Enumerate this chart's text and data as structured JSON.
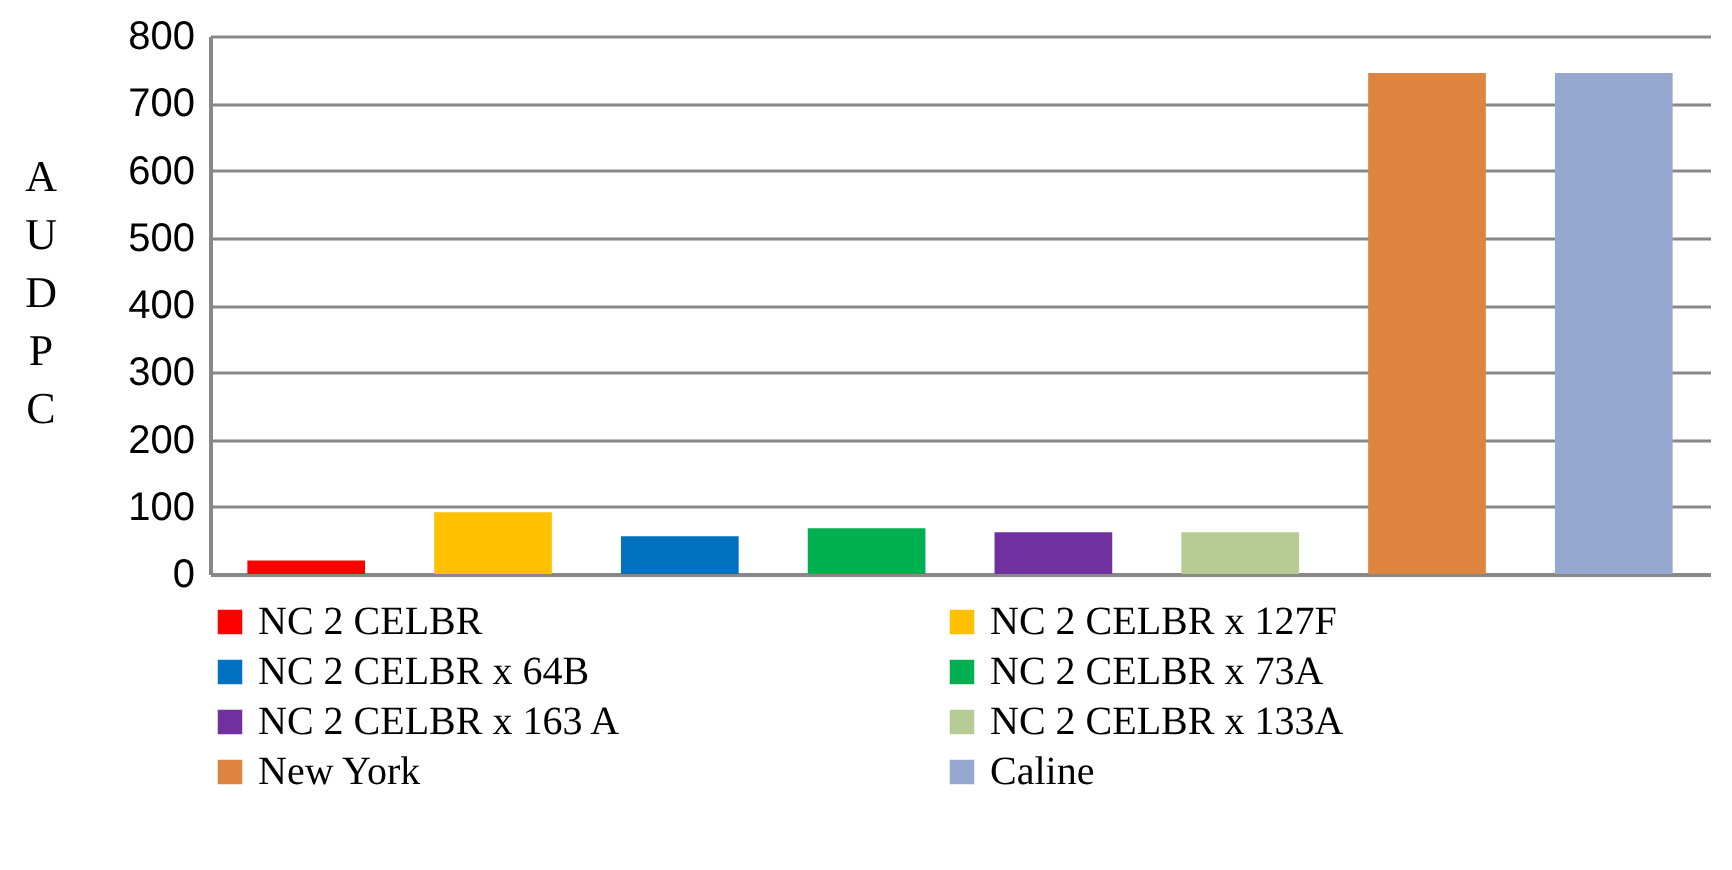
{
  "chart_data": {
    "type": "bar",
    "ylabel": "AUDPC",
    "categories": [
      null,
      null,
      null,
      null,
      null,
      null,
      null,
      null
    ],
    "series": [
      {
        "name": "NC 2 CELBR",
        "color": "#ff0000",
        "values": [
          20,
          null,
          null,
          null,
          null,
          null,
          null,
          null
        ]
      },
      {
        "name": "NC 2 CELBR x 127F",
        "color": "#ffc000",
        "values": [
          null,
          92,
          null,
          null,
          null,
          null,
          null,
          null
        ]
      },
      {
        "name": "NC 2 CELBR x 64B",
        "color": "#0070c0",
        "values": [
          null,
          null,
          56,
          null,
          null,
          null,
          null,
          null
        ]
      },
      {
        "name": "NC 2 CELBR x 73A",
        "color": "#00b050",
        "values": [
          null,
          null,
          null,
          68,
          null,
          null,
          null,
          null
        ]
      },
      {
        "name": "NC 2 CELBR x 163 A",
        "color": "#7030a0",
        "values": [
          null,
          null,
          null,
          null,
          62,
          null,
          null,
          null
        ]
      },
      {
        "name": "NC 2 CELBR x 133A",
        "color": "#b7cc94",
        "values": [
          null,
          null,
          null,
          null,
          null,
          62,
          null,
          null
        ]
      },
      {
        "name": "New York",
        "color": "#dd8440",
        "values": [
          null,
          null,
          null,
          null,
          null,
          null,
          745,
          null
        ]
      },
      {
        "name": "Caline",
        "color": "#95a9d0",
        "values": [
          null,
          null,
          null,
          null,
          null,
          null,
          null,
          745
        ]
      }
    ],
    "ylim": [
      0,
      800
    ],
    "yticks": [
      0,
      100,
      200,
      300,
      400,
      500,
      600,
      700,
      800
    ],
    "grid": "y",
    "legend": "bottom",
    "tick_labels": "y"
  }
}
